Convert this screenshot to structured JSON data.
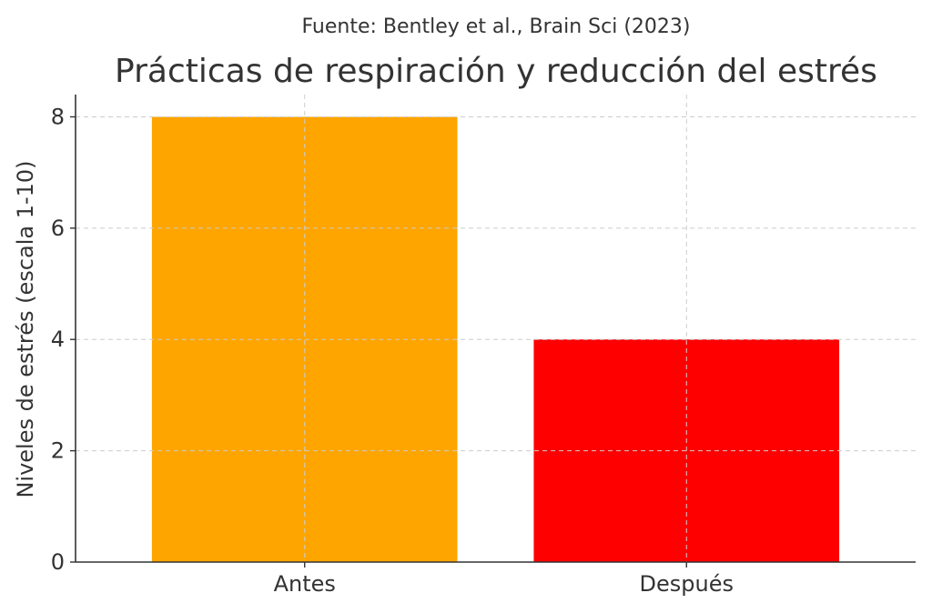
{
  "chart_data": {
    "type": "bar",
    "source": "Fuente: Bentley et al., Brain Sci (2023)",
    "title": "Prácticas de respiración y reducción del estrés",
    "xlabel": "",
    "ylabel": "Niveles de estrés (escala 1-10)",
    "categories": [
      "Antes",
      "Después"
    ],
    "values": [
      8,
      4
    ],
    "colors": [
      "#FFA500",
      "#FF0000"
    ],
    "ylim": [
      0,
      8.4
    ],
    "yticks": [
      0,
      2,
      4,
      6,
      8
    ],
    "grid": true
  }
}
